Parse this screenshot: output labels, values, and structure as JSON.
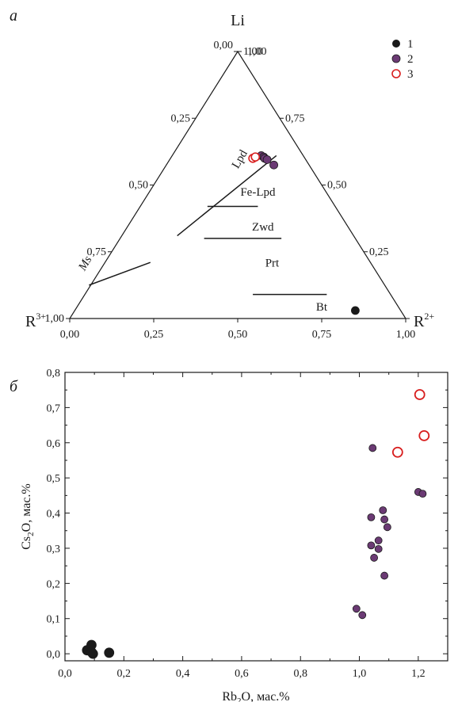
{
  "colors": {
    "group1": "#1a1a1a",
    "group2": "#6b3a74",
    "group3_stroke": "#d81e1e"
  },
  "chart_data": [
    {
      "type": "scatter",
      "subtype": "ternary",
      "panel_label": "а",
      "apices": {
        "top": "Li",
        "left": "R",
        "left_sup": "3+",
        "right": "R",
        "right_sup": "2+"
      },
      "scale_ticks": [
        "0,00",
        "0,25",
        "0,50",
        "0,75",
        "1,00"
      ],
      "field_labels": [
        {
          "key": "lpd",
          "text": "Lpd",
          "r2": 0.22,
          "li": 0.59,
          "rotate": -60
        },
        {
          "key": "felpd",
          "text": "Fe-Lpd",
          "r2": 0.33,
          "li": 0.46,
          "rotate": 0
        },
        {
          "key": "zwd",
          "text": "Zwd",
          "r2": 0.41,
          "li": 0.33,
          "rotate": 0
        },
        {
          "key": "prt",
          "text": "Prt",
          "r2": 0.505,
          "li": 0.195,
          "rotate": 0
        },
        {
          "key": "bt",
          "text": "Bt",
          "r2": 0.735,
          "li": 0.03,
          "rotate": 0
        },
        {
          "key": "ms",
          "text": "Ms",
          "r2": -0.045,
          "li": 0.2,
          "rotate": -60
        }
      ],
      "field_boundaries": [
        {
          "name": "Ms",
          "from": [
            -0.005,
            0.125
          ],
          "to": [
            0.135,
            0.21
          ]
        },
        {
          "name": "Lpd",
          "from": [
            0.165,
            0.31
          ],
          "to": [
            0.31,
            0.61
          ]
        },
        {
          "name": "Fe-Lpd/Zwd",
          "from": [
            0.2,
            0.42
          ],
          "to": [
            0.35,
            0.42
          ]
        },
        {
          "name": "Zwd/Prt",
          "from": [
            0.25,
            0.3
          ],
          "to": [
            0.48,
            0.3
          ]
        },
        {
          "name": "Prt/Bt",
          "from": [
            0.5,
            0.09
          ],
          "to": [
            0.72,
            0.09
          ]
        }
      ],
      "legend": [
        "1",
        "2",
        "3"
      ],
      "series": [
        {
          "name": "1",
          "points": [
            {
              "r2": 0.835,
              "li": 0.03
            }
          ]
        },
        {
          "name": "2",
          "points": [
            {
              "r2": 0.265,
              "li": 0.61
            },
            {
              "r2": 0.275,
              "li": 0.605
            },
            {
              "r2": 0.28,
              "li": 0.6
            },
            {
              "r2": 0.29,
              "li": 0.595
            },
            {
              "r2": 0.32,
              "li": 0.575
            }
          ]
        },
        {
          "name": "3",
          "points": [
            {
              "r2": 0.245,
              "li": 0.6
            },
            {
              "r2": 0.25,
              "li": 0.605
            }
          ]
        }
      ]
    },
    {
      "type": "scatter",
      "panel_label": "б",
      "xlabel_main": "Rb",
      "xlabel_sub": "2",
      "xlabel_rest": "O, мас.%",
      "ylabel_main": "Cs",
      "ylabel_sub": "2",
      "ylabel_rest": "O, мас.%",
      "xlim": [
        0,
        1.3
      ],
      "ylim": [
        -0.02,
        0.8
      ],
      "x_ticks": [
        "0,0",
        "0,2",
        "0,4",
        "0,6",
        "0,8",
        "1,0",
        "1,2"
      ],
      "y_ticks": [
        "0,0",
        "0,1",
        "0,2",
        "0,3",
        "0,4",
        "0,5",
        "0,6",
        "0,7",
        "0,8"
      ],
      "series": [
        {
          "name": "1",
          "points": [
            [
              0.075,
              0.01
            ],
            [
              0.09,
              0.025
            ],
            [
              0.09,
              0.005
            ],
            [
              0.095,
              0.0
            ],
            [
              0.15,
              0.003
            ]
          ]
        },
        {
          "name": "2",
          "points": [
            [
              1.045,
              0.585
            ],
            [
              1.04,
              0.388
            ],
            [
              1.04,
              0.308
            ],
            [
              1.05,
              0.273
            ],
            [
              1.065,
              0.322
            ],
            [
              1.065,
              0.298
            ],
            [
              1.08,
              0.408
            ],
            [
              1.085,
              0.382
            ],
            [
              1.095,
              0.36
            ],
            [
              1.085,
              0.222
            ],
            [
              0.99,
              0.128
            ],
            [
              1.01,
              0.11
            ],
            [
              1.2,
              0.46
            ],
            [
              1.215,
              0.455
            ]
          ]
        },
        {
          "name": "3",
          "points": [
            [
              1.205,
              0.737
            ],
            [
              1.13,
              0.573
            ],
            [
              1.22,
              0.62
            ]
          ]
        }
      ]
    }
  ]
}
